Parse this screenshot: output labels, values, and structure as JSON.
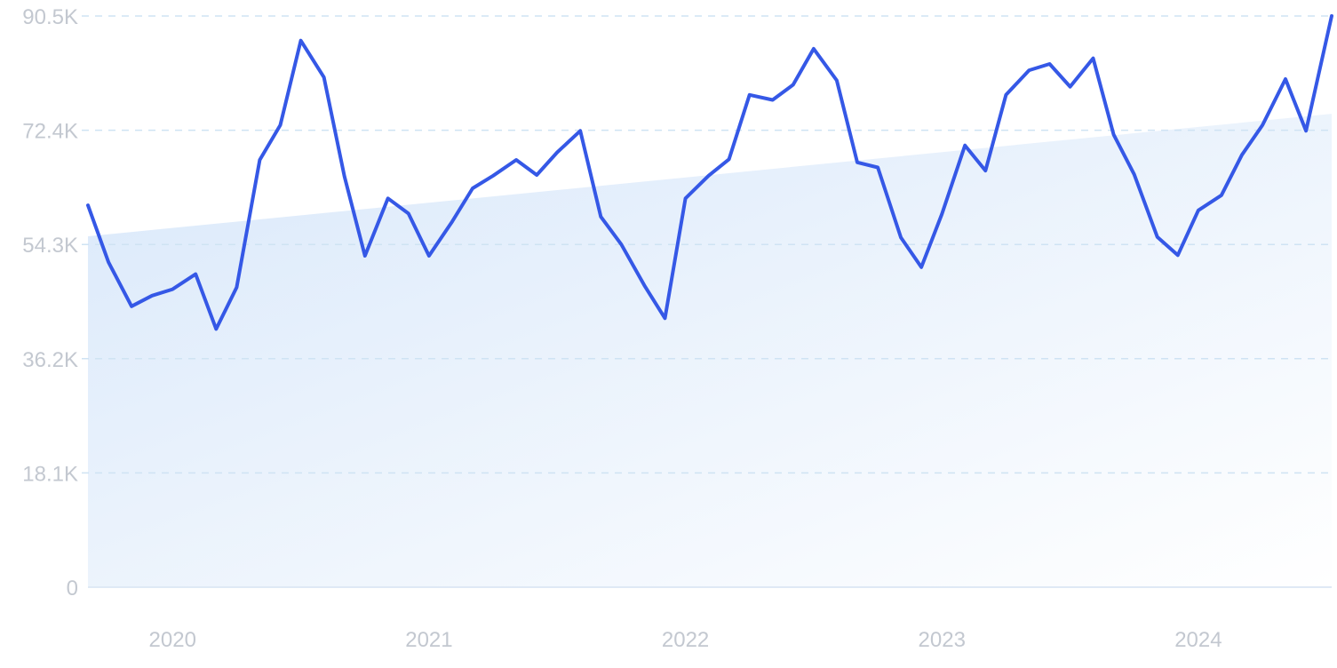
{
  "chart_data": {
    "type": "line",
    "title": "",
    "xlabel": "",
    "ylabel": "",
    "grid": true,
    "ylim": [
      0,
      90500
    ],
    "xlim": [
      2019.85,
      2024.7
    ],
    "y_ticks": [
      {
        "value": 0,
        "label": "0"
      },
      {
        "value": 18100,
        "label": "18.1K"
      },
      {
        "value": 36200,
        "label": "36.2K"
      },
      {
        "value": 54300,
        "label": "54.3K"
      },
      {
        "value": 72400,
        "label": "72.4K"
      },
      {
        "value": 90500,
        "label": "90.5K"
      }
    ],
    "x_ticks": [
      {
        "value": 2020.18,
        "label": "2020"
      },
      {
        "value": 2021.18,
        "label": "2021"
      },
      {
        "value": 2022.18,
        "label": "2022"
      },
      {
        "value": 2023.18,
        "label": "2023"
      },
      {
        "value": 2024.18,
        "label": "2024"
      }
    ],
    "colors": {
      "line": "#3558e6",
      "trend_top": "#d9e8fa",
      "trend_bottom": "#ffffff",
      "grid": "#cfe3f3",
      "tick_text": "#c3c8d0"
    },
    "trend": {
      "x": [
        2019.85,
        2024.7
      ],
      "y": [
        55600,
        75000
      ]
    },
    "series": [
      {
        "x": [
          2019.85,
          2019.93,
          2020.02,
          2020.1,
          2020.18,
          2020.27,
          2020.35,
          2020.43,
          2020.52,
          2020.6,
          2020.68,
          2020.77,
          2020.85,
          2020.93,
          2021.02,
          2021.1,
          2021.18,
          2021.27,
          2021.35,
          2021.43,
          2021.52,
          2021.6,
          2021.68,
          2021.77,
          2021.85,
          2021.93,
          2022.02,
          2022.1,
          2022.18,
          2022.27,
          2022.35,
          2022.43,
          2022.52,
          2022.6,
          2022.68,
          2022.77,
          2022.85,
          2022.93,
          2023.02,
          2023.1,
          2023.18,
          2023.27,
          2023.35,
          2023.43,
          2023.52,
          2023.6,
          2023.68,
          2023.77,
          2023.85,
          2023.93,
          2024.02,
          2024.1,
          2024.18,
          2024.27,
          2024.35,
          2024.43,
          2024.52,
          2024.6,
          2024.7
        ],
        "values": [
          60500,
          51500,
          44500,
          46200,
          47200,
          49600,
          40900,
          47500,
          67700,
          73200,
          86600,
          80800,
          65100,
          52500,
          61600,
          59200,
          52500,
          57900,
          63200,
          65200,
          67700,
          65300,
          68900,
          72300,
          58700,
          54300,
          47800,
          42600,
          61600,
          65200,
          67800,
          78000,
          77200,
          79600,
          85300,
          80300,
          67300,
          66500,
          55400,
          50700,
          59100,
          70000,
          66000,
          78000,
          81900,
          82900,
          79300,
          83800,
          71700,
          65400,
          55500,
          52600,
          59700,
          62100,
          68500,
          73200,
          80500,
          72300,
          90500
        ]
      }
    ]
  }
}
